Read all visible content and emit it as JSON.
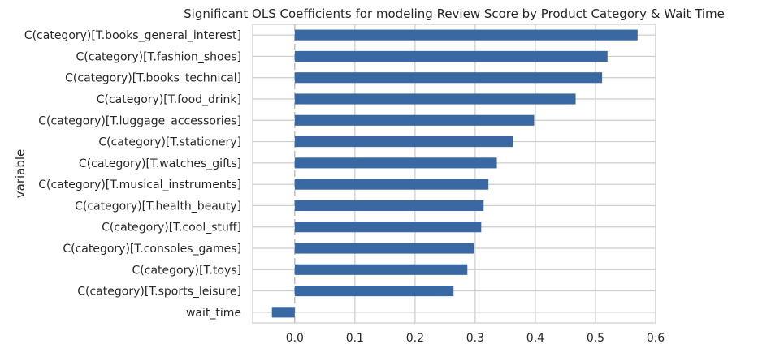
{
  "chart_data": {
    "type": "bar",
    "orientation": "horizontal",
    "title": "Significant OLS Coefficients for modeling Review Score by Product Category & Wait Time",
    "xlabel": "",
    "ylabel": "variable",
    "categories": [
      "C(category)[T.books_general_interest]",
      "C(category)[T.fashion_shoes]",
      "C(category)[T.books_technical]",
      "C(category)[T.food_drink]",
      "C(category)[T.luggage_accessories]",
      "C(category)[T.stationery]",
      "C(category)[T.watches_gifts]",
      "C(category)[T.musical_instruments]",
      "C(category)[T.health_beauty]",
      "C(category)[T.cool_stuff]",
      "C(category)[T.consoles_games]",
      "C(category)[T.toys]",
      "C(category)[T.sports_leisure]",
      "wait_time"
    ],
    "values": [
      0.57,
      0.52,
      0.511,
      0.467,
      0.398,
      0.363,
      0.336,
      0.322,
      0.314,
      0.31,
      0.298,
      0.287,
      0.264,
      -0.038
    ],
    "xlim": [
      -0.07,
      0.6
    ],
    "xticks": [
      0.0,
      0.1,
      0.2,
      0.3,
      0.4,
      0.5,
      0.6
    ],
    "xtick_labels": [
      "0.0",
      "0.1",
      "0.2",
      "0.3",
      "0.4",
      "0.5",
      "0.6"
    ],
    "grid": true,
    "bar_color": "#3a68a3",
    "grid_color": "#cccccc",
    "zero_line_color": "#b0b0b0",
    "legend": "none"
  }
}
